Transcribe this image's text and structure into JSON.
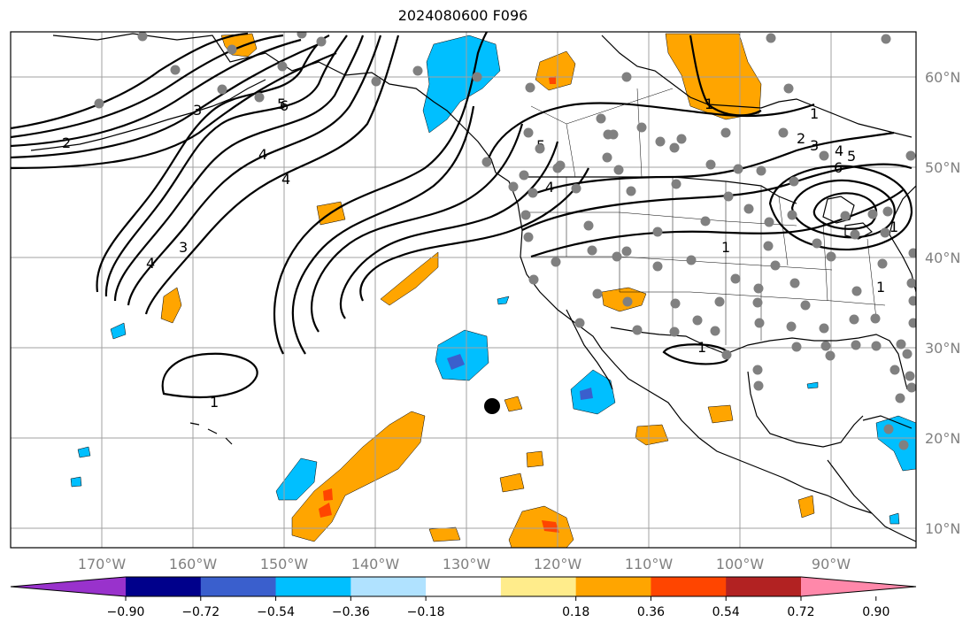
{
  "title": "2024080600 F096",
  "map": {
    "lon_ticks": [
      "170°W",
      "160°W",
      "150°W",
      "140°W",
      "130°W",
      "120°W",
      "110°W",
      "100°W",
      "90°W"
    ],
    "lat_ticks": [
      "60°N",
      "50°N",
      "40°N",
      "30°N",
      "20°N",
      "10°N"
    ],
    "contour_labels": [
      "1",
      "2",
      "3",
      "4",
      "5",
      "6",
      "4",
      "3",
      "4",
      "1",
      "1",
      "5",
      "4",
      "1",
      "2",
      "3",
      "4",
      "5",
      "6",
      "1",
      "1",
      "1"
    ],
    "colors": {
      "land_outline": "#000000",
      "contour": "#000000",
      "gridline": "#a0a0a0",
      "station_dot": "#808080",
      "storm_marker": "#000000"
    }
  },
  "colorbar": {
    "ticks": [
      "−0.90",
      "−0.72",
      "−0.54",
      "−0.36",
      "−0.18",
      "0.18",
      "0.36",
      "0.54",
      "0.72",
      "0.90"
    ],
    "colors": [
      "#9932cc",
      "#00008b",
      "#3a5fcd",
      "#00bfff",
      "#b0e2ff",
      "#ffffff",
      "#ffec8b",
      "#ffa500",
      "#ff4500",
      "#b22222",
      "#ff88aa"
    ]
  }
}
